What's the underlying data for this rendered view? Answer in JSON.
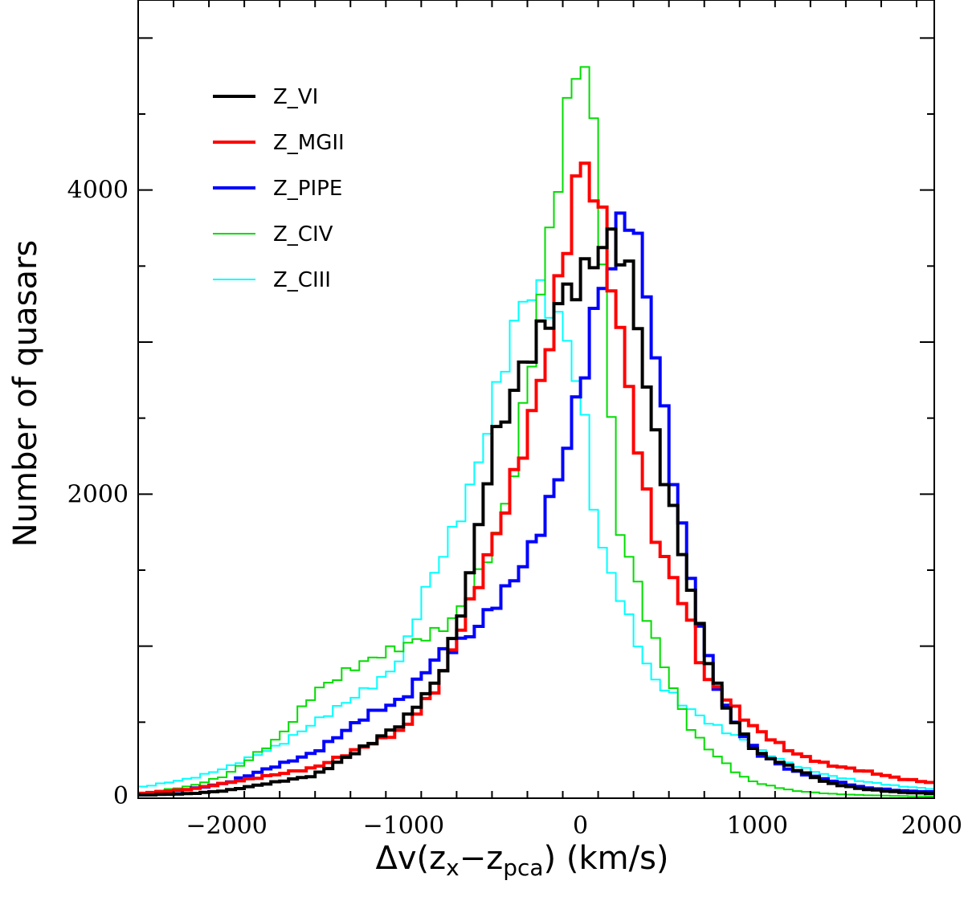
{
  "chart_data": {
    "type": "line",
    "step": true,
    "xlabel_parts": {
      "pre": "Δv(z",
      "sub1": "x",
      "mid": "−z",
      "sub2": "pca",
      "post": ") (km/s)"
    },
    "ylabel": "Number of quasars",
    "xlim": [
      -2500,
      2000
    ],
    "ylim": [
      0,
      5250
    ],
    "xticks": [
      -2000,
      -1000,
      0,
      1000,
      2000
    ],
    "xtick_labels": [
      "−2000",
      "−1000",
      "0",
      "1000",
      "2000"
    ],
    "yticks": [
      0,
      2000,
      4000
    ],
    "ytick_labels": [
      "0",
      "2000",
      "4000"
    ],
    "legend_position": "top-left",
    "bin_width": 50,
    "x_start": -2500,
    "series": [
      {
        "name": "Z_VI",
        "color": "#000000",
        "width": 4,
        "anchors": [
          [
            -2500,
            20
          ],
          [
            -2200,
            30
          ],
          [
            -2000,
            50
          ],
          [
            -1500,
            150
          ],
          [
            -1200,
            350
          ],
          [
            -1000,
            500
          ],
          [
            -900,
            650
          ],
          [
            -800,
            780
          ],
          [
            -700,
            1100
          ],
          [
            -600,
            1600
          ],
          [
            -500,
            2300
          ],
          [
            -400,
            2600
          ],
          [
            -300,
            2900
          ],
          [
            -200,
            3100
          ],
          [
            -100,
            3300
          ],
          [
            0,
            3400
          ],
          [
            100,
            3600
          ],
          [
            200,
            3700
          ],
          [
            300,
            3350
          ],
          [
            400,
            2500
          ],
          [
            500,
            2000
          ],
          [
            600,
            1500
          ],
          [
            700,
            1000
          ],
          [
            800,
            650
          ],
          [
            900,
            450
          ],
          [
            1000,
            300
          ],
          [
            1200,
            200
          ],
          [
            1400,
            100
          ],
          [
            1600,
            60
          ],
          [
            1800,
            40
          ],
          [
            2000,
            30
          ]
        ]
      },
      {
        "name": "Z_MGII",
        "color": "#ff0000",
        "width": 4,
        "anchors": [
          [
            -2500,
            30
          ],
          [
            -2200,
            60
          ],
          [
            -2000,
            100
          ],
          [
            -1500,
            200
          ],
          [
            -1200,
            350
          ],
          [
            -1000,
            450
          ],
          [
            -900,
            600
          ],
          [
            -800,
            750
          ],
          [
            -700,
            1050
          ],
          [
            -600,
            1350
          ],
          [
            -500,
            1650
          ],
          [
            -400,
            2000
          ],
          [
            -300,
            2400
          ],
          [
            -200,
            2850
          ],
          [
            -100,
            3500
          ],
          [
            0,
            4220
          ],
          [
            100,
            3950
          ],
          [
            200,
            3250
          ],
          [
            300,
            2500
          ],
          [
            400,
            1800
          ],
          [
            500,
            1500
          ],
          [
            600,
            1250
          ],
          [
            700,
            800
          ],
          [
            800,
            700
          ],
          [
            900,
            550
          ],
          [
            1000,
            450
          ],
          [
            1200,
            300
          ],
          [
            1400,
            220
          ],
          [
            1600,
            180
          ],
          [
            1800,
            130
          ],
          [
            2000,
            100
          ]
        ]
      },
      {
        "name": "Z_PIPE",
        "color": "#0000ff",
        "width": 4,
        "anchors": [
          [
            -2500,
            20
          ],
          [
            -2200,
            60
          ],
          [
            -2000,
            100
          ],
          [
            -1500,
            300
          ],
          [
            -1200,
            550
          ],
          [
            -1000,
            650
          ],
          [
            -900,
            800
          ],
          [
            -800,
            950
          ],
          [
            -700,
            1000
          ],
          [
            -600,
            1100
          ],
          [
            -500,
            1250
          ],
          [
            -400,
            1400
          ],
          [
            -300,
            1580
          ],
          [
            -200,
            1850
          ],
          [
            -100,
            2200
          ],
          [
            0,
            2700
          ],
          [
            100,
            3300
          ],
          [
            200,
            3600
          ],
          [
            250,
            3900
          ],
          [
            300,
            3800
          ],
          [
            400,
            3150
          ],
          [
            500,
            2300
          ],
          [
            600,
            1600
          ],
          [
            700,
            1000
          ],
          [
            800,
            650
          ],
          [
            900,
            450
          ],
          [
            1000,
            300
          ],
          [
            1200,
            180
          ],
          [
            1400,
            120
          ],
          [
            1600,
            70
          ],
          [
            1800,
            50
          ],
          [
            2000,
            40
          ]
        ]
      },
      {
        "name": "Z_CIV",
        "color": "#00dd00",
        "width": 2,
        "anchors": [
          [
            -2500,
            30
          ],
          [
            -2200,
            80
          ],
          [
            -2000,
            150
          ],
          [
            -1700,
            400
          ],
          [
            -1500,
            700
          ],
          [
            -1300,
            850
          ],
          [
            -1100,
            960
          ],
          [
            -1000,
            1000
          ],
          [
            -900,
            1050
          ],
          [
            -800,
            1100
          ],
          [
            -700,
            1200
          ],
          [
            -600,
            1400
          ],
          [
            -500,
            1650
          ],
          [
            -400,
            2000
          ],
          [
            -300,
            2700
          ],
          [
            -200,
            3500
          ],
          [
            -100,
            4300
          ],
          [
            0,
            5000
          ],
          [
            100,
            4200
          ],
          [
            200,
            1850
          ],
          [
            300,
            1500
          ],
          [
            400,
            1100
          ],
          [
            500,
            800
          ],
          [
            600,
            500
          ],
          [
            700,
            350
          ],
          [
            800,
            250
          ],
          [
            900,
            150
          ],
          [
            1000,
            100
          ],
          [
            1200,
            50
          ],
          [
            1400,
            30
          ],
          [
            1600,
            20
          ],
          [
            2000,
            10
          ]
        ]
      },
      {
        "name": "Z_CIII",
        "color": "#00ffff",
        "width": 2,
        "anchors": [
          [
            -2500,
            70
          ],
          [
            -2200,
            130
          ],
          [
            -2000,
            200
          ],
          [
            -1700,
            350
          ],
          [
            -1500,
            500
          ],
          [
            -1300,
            650
          ],
          [
            -1100,
            800
          ],
          [
            -1000,
            950
          ],
          [
            -900,
            1300
          ],
          [
            -800,
            1550
          ],
          [
            -700,
            1800
          ],
          [
            -600,
            2100
          ],
          [
            -500,
            2550
          ],
          [
            -400,
            3000
          ],
          [
            -300,
            3350
          ],
          [
            -200,
            3300
          ],
          [
            -100,
            3100
          ],
          [
            0,
            2700
          ],
          [
            100,
            1700
          ],
          [
            200,
            1400
          ],
          [
            300,
            1100
          ],
          [
            400,
            800
          ],
          [
            500,
            700
          ],
          [
            600,
            600
          ],
          [
            700,
            520
          ],
          [
            800,
            450
          ],
          [
            900,
            400
          ],
          [
            1000,
            320
          ],
          [
            1200,
            220
          ],
          [
            1400,
            150
          ],
          [
            1600,
            110
          ],
          [
            1800,
            80
          ],
          [
            2000,
            60
          ]
        ]
      }
    ]
  }
}
